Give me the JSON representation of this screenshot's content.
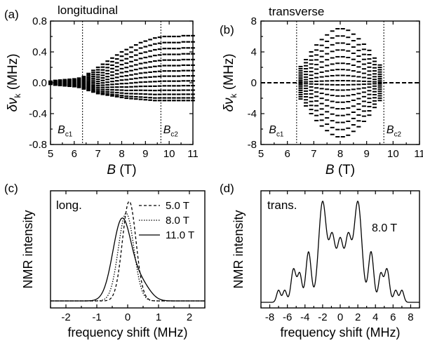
{
  "figure": {
    "background": "#ffffff",
    "ink": "#000000"
  },
  "chart_data": [
    {
      "type": "scatter",
      "panel_label": "(a)",
      "title": "longitudinal",
      "xlabel": "B (T)",
      "ylabel": "δν_k (MHz)",
      "xlim": [
        5,
        11
      ],
      "ylim": [
        -0.8,
        0.8
      ],
      "xticks": [
        "5",
        "6",
        "7",
        "8",
        "9",
        "10",
        "11"
      ],
      "yticks": [
        "-0.8",
        "-0.4",
        "0.0",
        "0.4",
        "0.8"
      ],
      "vlines": [
        {
          "x": 6.35,
          "label": "B_c1"
        },
        {
          "x": 9.65,
          "label": "B_c2"
        }
      ],
      "x": [
        5.0,
        5.2,
        5.4,
        5.6,
        5.8,
        6.0,
        6.2,
        6.4,
        6.6,
        6.8,
        7.0,
        7.2,
        7.4,
        7.6,
        7.8,
        8.0,
        8.2,
        8.4,
        8.6,
        8.8,
        9.0,
        9.2,
        9.4,
        9.6,
        9.8,
        10.0,
        10.2,
        10.4,
        10.6,
        10.8,
        11.0
      ],
      "series_top": [
        0.02,
        0.03,
        0.035,
        0.04,
        0.045,
        0.05,
        0.06,
        0.08,
        0.12,
        0.16,
        0.2,
        0.24,
        0.28,
        0.32,
        0.36,
        0.4,
        0.43,
        0.46,
        0.49,
        0.52,
        0.54,
        0.56,
        0.58,
        0.59,
        0.6,
        0.6,
        0.6,
        0.6,
        0.61,
        0.61,
        0.61
      ],
      "series_bottom": [
        -0.02,
        -0.03,
        -0.035,
        -0.04,
        -0.045,
        -0.05,
        -0.06,
        -0.08,
        -0.1,
        -0.12,
        -0.14,
        -0.15,
        -0.16,
        -0.17,
        -0.18,
        -0.19,
        -0.2,
        -0.205,
        -0.21,
        -0.215,
        -0.22,
        -0.225,
        -0.23,
        -0.23,
        -0.23,
        -0.23,
        -0.23,
        -0.23,
        -0.23,
        -0.23,
        -0.23
      ],
      "lines_per_field": 14,
      "grid": false
    },
    {
      "type": "scatter",
      "panel_label": "(b)",
      "title": "transverse",
      "xlabel": "B (T)",
      "ylabel": "δν_k (MHz)",
      "xlim": [
        5,
        11
      ],
      "ylim": [
        -8,
        8
      ],
      "xticks": [
        "5",
        "6",
        "7",
        "8",
        "9",
        "10",
        "11"
      ],
      "yticks": [
        "-8",
        "-4",
        "0",
        "4",
        "8"
      ],
      "vlines": [
        {
          "x": 6.35,
          "label": "B_c1"
        },
        {
          "x": 9.65,
          "label": "B_c2"
        }
      ],
      "x": [
        6.5,
        6.7,
        6.9,
        7.1,
        7.3,
        7.5,
        7.7,
        7.9,
        8.1,
        8.3,
        8.5,
        8.7,
        8.9,
        9.1,
        9.3,
        9.5
      ],
      "extent": [
        2.1,
        3.0,
        4.0,
        4.9,
        5.6,
        6.2,
        6.7,
        7.0,
        7.0,
        6.8,
        6.3,
        5.7,
        5.0,
        4.2,
        3.2,
        2.3
      ],
      "zero_level_outside": 0,
      "lines_per_field": 18,
      "grid": false
    },
    {
      "type": "line",
      "panel_label": "(c)",
      "title": "long.",
      "xlabel": "frequency shift (MHz)",
      "ylabel": "NMR intensity",
      "xlim": [
        -2.5,
        2.5
      ],
      "xticks": [
        "-2",
        "-1",
        "0",
        "1",
        "2"
      ],
      "series": [
        {
          "name": "5.0 T",
          "dash": "dashed",
          "components": [
            [
              0.05,
              0.22,
              1.0
            ]
          ]
        },
        {
          "name": "8.0 T",
          "dash": "dotted",
          "components": [
            [
              -0.05,
              0.25,
              0.88
            ]
          ]
        },
        {
          "name": "11.0 T",
          "dash": "solid",
          "components": [
            [
              -0.18,
              0.3,
              0.82
            ],
            [
              0.45,
              0.28,
              0.16
            ]
          ]
        }
      ],
      "grid": false
    },
    {
      "type": "line",
      "panel_label": "(d)",
      "title": "trans.",
      "annotation": "8.0 T",
      "xlabel": "frequency shift (MHz)",
      "ylabel": "NMR intensity",
      "xlim": [
        -9,
        9
      ],
      "xticks": [
        "-8",
        "-6",
        "-4",
        "-2",
        "0",
        "2",
        "4",
        "6",
        "8"
      ],
      "series": [
        {
          "name": "",
          "dash": "solid",
          "components": [
            [
              -7.0,
              0.22,
              0.12
            ],
            [
              -6.3,
              0.22,
              0.12
            ],
            [
              -5.3,
              0.28,
              0.33
            ],
            [
              -4.6,
              0.25,
              0.28
            ],
            [
              -3.6,
              0.3,
              0.5
            ],
            [
              -2.0,
              0.45,
              1.0
            ],
            [
              -0.9,
              0.35,
              0.62
            ],
            [
              0.0,
              0.35,
              0.6
            ],
            [
              0.9,
              0.35,
              0.62
            ],
            [
              2.0,
              0.45,
              1.0
            ],
            [
              3.5,
              0.3,
              0.5
            ],
            [
              4.6,
              0.25,
              0.28
            ],
            [
              5.3,
              0.28,
              0.33
            ],
            [
              6.3,
              0.22,
              0.12
            ],
            [
              7.0,
              0.22,
              0.12
            ]
          ]
        }
      ],
      "grid": false
    }
  ]
}
